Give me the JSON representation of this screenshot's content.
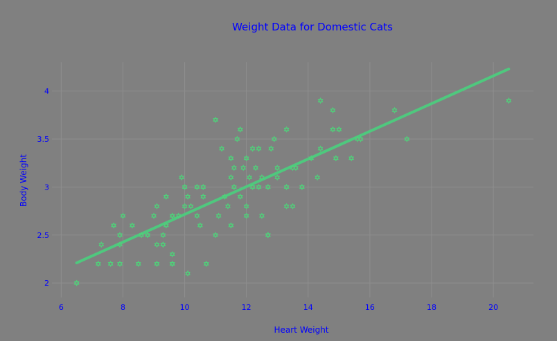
{
  "chart_data": {
    "type": "scatter",
    "title": "Weight Data for Domestic Cats",
    "xlabel": "Heart Weight",
    "ylabel": "Body Weight",
    "xlim": [
      5.7,
      21.3
    ],
    "ylim": [
      1.85,
      4.3
    ],
    "x_ticks": [
      6,
      8,
      10,
      12,
      14,
      16,
      18,
      20
    ],
    "y_ticks": [
      2,
      2.5,
      3,
      3.5,
      4
    ],
    "x_tick_labels": [
      "6",
      "8",
      "10",
      "12",
      "14",
      "16",
      "18",
      "20"
    ],
    "y_tick_labels": [
      "2",
      "2.5",
      "3",
      "3.5",
      "4"
    ],
    "grid": true,
    "legend": "none",
    "colors": {
      "background": "#808080",
      "grid": "#8e8e8e",
      "text": "#0000ff",
      "marker": "#50d07a",
      "trend": "#4fc87e"
    },
    "marker": "hexagram",
    "series": [
      {
        "mode": "markers",
        "x": [
          6.5,
          6.5,
          7.2,
          7.3,
          7.6,
          7.7,
          7.9,
          7.9,
          7.9,
          8.0,
          8.3,
          8.5,
          8.6,
          8.8,
          8.8,
          9.0,
          9.1,
          9.1,
          9.1,
          9.3,
          9.3,
          9.3,
          9.4,
          9.4,
          9.6,
          9.6,
          9.6,
          9.6,
          9.6,
          9.8,
          9.9,
          10.0,
          10.0,
          10.1,
          10.1,
          10.2,
          10.4,
          10.4,
          10.5,
          10.6,
          10.6,
          10.7,
          11.0,
          11.0,
          11.1,
          11.2,
          11.3,
          11.4,
          11.5,
          11.5,
          11.5,
          11.6,
          11.6,
          11.7,
          11.8,
          11.8,
          11.9,
          12.0,
          12.0,
          12.0,
          12.1,
          12.2,
          12.2,
          12.3,
          12.4,
          12.4,
          12.5,
          12.5,
          12.7,
          12.7,
          12.7,
          12.8,
          12.9,
          13.0,
          13.0,
          13.3,
          13.3,
          13.3,
          13.5,
          13.5,
          13.6,
          13.8,
          14.1,
          14.3,
          14.4,
          14.4,
          14.8,
          14.8,
          14.9,
          15.0,
          15.4,
          15.6,
          15.7,
          16.8,
          17.2,
          20.5
        ],
        "y": [
          2.0,
          2.0,
          2.2,
          2.4,
          2.2,
          2.6,
          2.2,
          2.4,
          2.5,
          2.7,
          2.6,
          2.2,
          2.5,
          2.5,
          2.5,
          2.7,
          2.2,
          2.4,
          2.8,
          2.4,
          2.4,
          2.5,
          2.6,
          2.9,
          2.2,
          2.2,
          2.3,
          2.7,
          2.7,
          2.7,
          3.1,
          2.8,
          3.0,
          2.1,
          2.9,
          2.8,
          2.7,
          3.0,
          2.6,
          2.9,
          3.0,
          2.2,
          2.5,
          3.7,
          2.7,
          3.4,
          2.9,
          2.8,
          2.6,
          3.1,
          3.3,
          3.0,
          3.2,
          3.5,
          2.9,
          3.6,
          3.2,
          2.7,
          2.8,
          3.3,
          3.1,
          3.0,
          3.4,
          3.2,
          3.0,
          3.4,
          2.7,
          3.1,
          2.5,
          2.5,
          3.0,
          3.4,
          3.5,
          3.1,
          3.2,
          2.8,
          3.0,
          3.6,
          2.8,
          3.2,
          3.2,
          3.0,
          3.3,
          3.1,
          3.4,
          3.9,
          3.6,
          3.8,
          3.3,
          3.6,
          3.3,
          3.5,
          3.5,
          3.8,
          3.5,
          3.9
        ]
      },
      {
        "mode": "lines",
        "x": [
          6.5,
          20.5
        ],
        "y": [
          2.21,
          4.23
        ]
      }
    ]
  }
}
